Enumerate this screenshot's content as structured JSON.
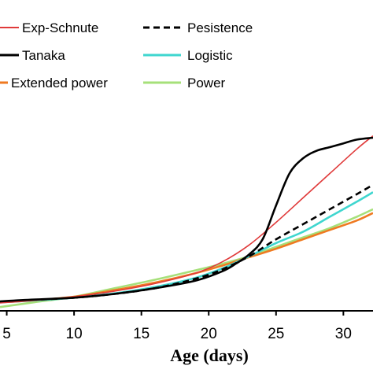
{
  "chart_data": {
    "type": "line",
    "title": "",
    "xlabel": "Age (days)",
    "ylabel": "",
    "xlim": [
      4.5,
      32.2
    ],
    "ylim": [
      0,
      1.15
    ],
    "xticks": [
      5,
      10,
      15,
      20,
      25,
      30
    ],
    "grid": false,
    "legend_position": "top",
    "series": [
      {
        "name": "Exp-Schnute",
        "color": "#e03a3a",
        "dash": "solid",
        "x": [
          4.5,
          7,
          10,
          13,
          16,
          19,
          21,
          23,
          25,
          27,
          29,
          31,
          32.2
        ],
        "y": [
          0.042,
          0.055,
          0.075,
          0.105,
          0.145,
          0.2,
          0.26,
          0.35,
          0.47,
          0.6,
          0.73,
          0.86,
          0.93
        ]
      },
      {
        "name": "Pesistence",
        "color": "#000000",
        "dash": "dashed",
        "x": [
          4.5,
          7,
          10,
          13,
          16,
          19,
          21,
          23,
          25,
          27,
          29,
          31,
          32.2
        ],
        "y": [
          0.048,
          0.058,
          0.07,
          0.09,
          0.12,
          0.17,
          0.22,
          0.29,
          0.38,
          0.46,
          0.54,
          0.62,
          0.67
        ]
      },
      {
        "name": "Tanaka",
        "color": "#000000",
        "dash": "solid",
        "x": [
          4.5,
          7,
          10,
          13,
          16,
          19,
          21,
          22,
          23,
          24,
          25,
          26,
          27,
          28,
          29,
          30,
          31,
          32.2
        ],
        "y": [
          0.05,
          0.06,
          0.07,
          0.09,
          0.12,
          0.16,
          0.21,
          0.25,
          0.3,
          0.38,
          0.56,
          0.73,
          0.81,
          0.85,
          0.87,
          0.89,
          0.91,
          0.92
        ]
      },
      {
        "name": "Logistic",
        "color": "#3fd6cf",
        "dash": "solid",
        "x": [
          4.5,
          7,
          10,
          13,
          16,
          19,
          21,
          23,
          25,
          27,
          29,
          31,
          32.2
        ],
        "y": [
          0.045,
          0.055,
          0.07,
          0.093,
          0.127,
          0.175,
          0.225,
          0.29,
          0.36,
          0.42,
          0.5,
          0.58,
          0.63
        ]
      },
      {
        "name": "Extended power",
        "color": "#ef7a21",
        "dash": "solid",
        "x": [
          4.5,
          7,
          10,
          13,
          16,
          19,
          21,
          23,
          25,
          27,
          29,
          31,
          32.2
        ],
        "y": [
          0.045,
          0.056,
          0.075,
          0.11,
          0.15,
          0.2,
          0.24,
          0.285,
          0.33,
          0.38,
          0.43,
          0.48,
          0.52
        ]
      },
      {
        "name": "Power",
        "color": "#a6e07a",
        "dash": "solid",
        "x": [
          4.5,
          7,
          10,
          13,
          16,
          19,
          21,
          23,
          25,
          27,
          29,
          31,
          32.2
        ],
        "y": [
          0.02,
          0.045,
          0.075,
          0.12,
          0.165,
          0.215,
          0.25,
          0.29,
          0.34,
          0.39,
          0.44,
          0.5,
          0.54
        ]
      }
    ]
  }
}
